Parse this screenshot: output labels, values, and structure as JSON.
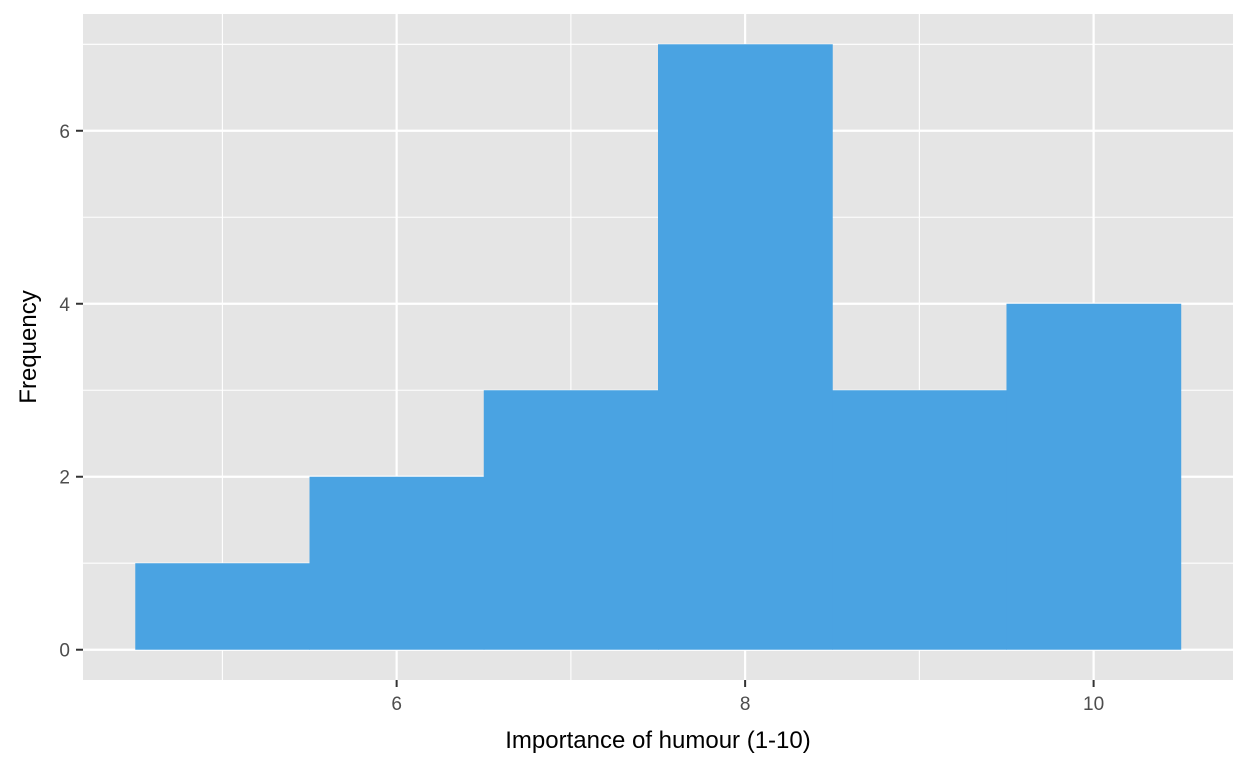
{
  "chart_data": {
    "type": "bar",
    "subtype": "histogram",
    "bins": [
      {
        "start": 4.5,
        "end": 5.5,
        "count": 1
      },
      {
        "start": 5.5,
        "end": 6.5,
        "count": 2
      },
      {
        "start": 6.5,
        "end": 7.5,
        "count": 3
      },
      {
        "start": 7.5,
        "end": 8.5,
        "count": 7
      },
      {
        "start": 8.5,
        "end": 9.5,
        "count": 3
      },
      {
        "start": 9.5,
        "end": 10.5,
        "count": 4
      }
    ],
    "xlabel": "Importance of humour (1-10)",
    "ylabel": "Frequency",
    "xlim": [
      4.2,
      10.8
    ],
    "ylim": [
      -0.35,
      7.35
    ],
    "x_ticks": [
      6,
      8,
      10
    ],
    "x_tick_labels": [
      "6",
      "8",
      "10"
    ],
    "x_minor_ticks": [
      5,
      7,
      9
    ],
    "y_ticks": [
      0,
      2,
      4,
      6
    ],
    "y_tick_labels": [
      "0",
      "2",
      "4",
      "6"
    ],
    "y_minor_ticks": [
      1,
      3,
      5,
      7
    ],
    "grid": true,
    "legend": "none",
    "colors": {
      "bar": "#4aa3e2",
      "panel": "#e5e5e5",
      "grid": "#ffffff",
      "tick_text": "#4d4d4d",
      "axis_title": "#000000"
    }
  }
}
